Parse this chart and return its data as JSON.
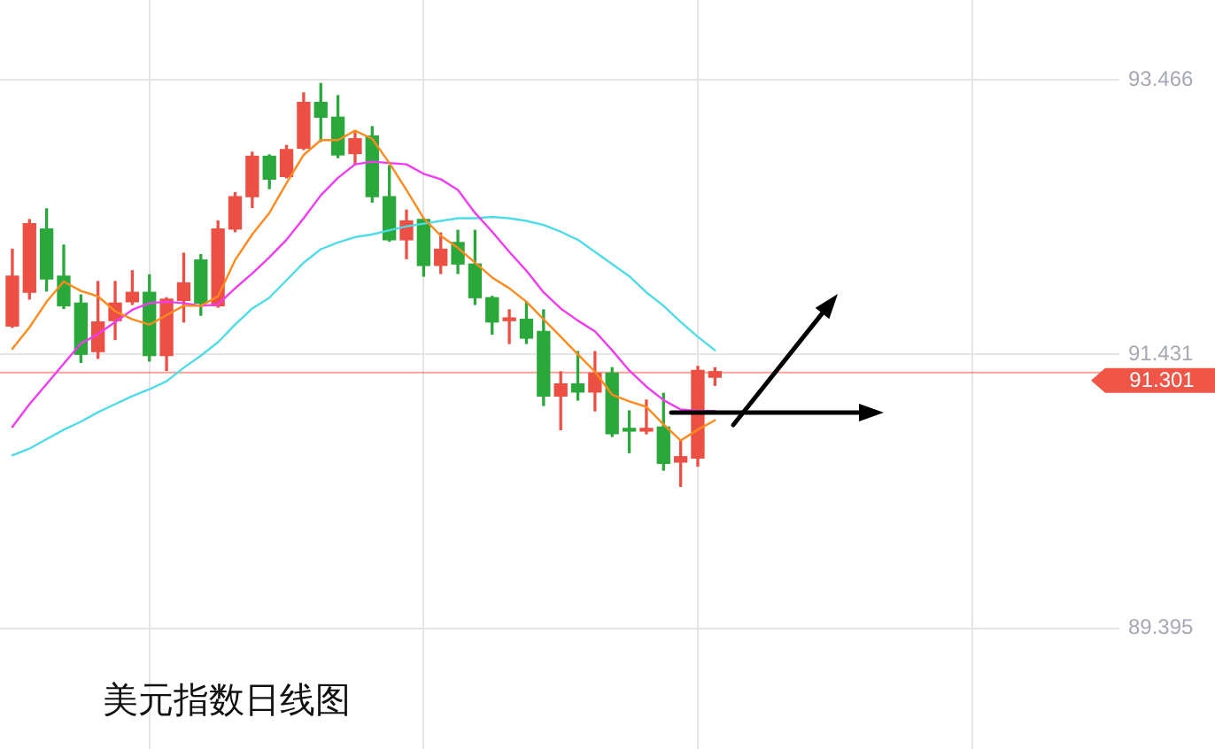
{
  "chart_data": {
    "type": "candlestick",
    "title": "美元指数日线图",
    "categories": [
      null,
      null,
      null,
      null,
      null,
      null,
      null,
      null,
      null,
      null,
      null,
      null,
      null,
      null,
      null,
      null,
      null,
      null,
      null,
      null,
      null,
      null,
      null,
      null,
      null,
      null,
      null,
      null,
      null,
      null,
      null,
      null,
      null,
      null,
      null,
      null,
      null,
      null,
      null,
      null,
      null,
      null
    ],
    "ohlc": [
      [
        91.64,
        92.21,
        91.63,
        92.01
      ],
      [
        91.89,
        92.43,
        91.84,
        92.4
      ],
      [
        92.36,
        92.51,
        91.9,
        91.99
      ],
      [
        92.01,
        92.24,
        91.77,
        91.79
      ],
      [
        91.81,
        91.87,
        91.37,
        91.43
      ],
      [
        91.45,
        91.97,
        91.4,
        91.67
      ],
      [
        91.68,
        91.97,
        91.54,
        91.81
      ],
      [
        91.82,
        92.05,
        91.8,
        91.89
      ],
      [
        91.89,
        92.02,
        91.38,
        91.42
      ],
      [
        91.42,
        91.85,
        91.31,
        91.84
      ],
      [
        91.83,
        92.18,
        91.67,
        91.96
      ],
      [
        92.13,
        92.17,
        91.72,
        91.81
      ],
      [
        91.79,
        92.42,
        91.78,
        92.36
      ],
      [
        92.36,
        92.63,
        92.34,
        92.6
      ],
      [
        92.6,
        92.93,
        92.52,
        92.9
      ],
      [
        92.9,
        92.91,
        92.66,
        92.73
      ],
      [
        92.75,
        92.98,
        92.74,
        92.95
      ],
      [
        92.96,
        93.37,
        92.95,
        93.3
      ],
      [
        93.3,
        93.44,
        93.01,
        93.19
      ],
      [
        93.19,
        93.35,
        92.89,
        92.91
      ],
      [
        92.92,
        93.09,
        92.84,
        93.03
      ],
      [
        93.05,
        93.12,
        92.56,
        92.6
      ],
      [
        92.6,
        92.83,
        92.27,
        92.28
      ],
      [
        92.28,
        92.5,
        92.14,
        92.42
      ],
      [
        92.43,
        92.44,
        92.01,
        92.09
      ],
      [
        92.09,
        92.33,
        92.03,
        92.21
      ],
      [
        92.26,
        92.35,
        92.03,
        92.1
      ],
      [
        92.1,
        92.35,
        91.8,
        91.85
      ],
      [
        91.85,
        91.86,
        91.58,
        91.67
      ],
      [
        91.68,
        91.76,
        91.51,
        91.7
      ],
      [
        91.69,
        91.82,
        91.51,
        91.55
      ],
      [
        91.6,
        91.76,
        91.05,
        91.12
      ],
      [
        91.12,
        91.3,
        90.87,
        91.21
      ],
      [
        91.21,
        91.45,
        91.09,
        91.15
      ],
      [
        91.15,
        91.45,
        91.01,
        91.29
      ],
      [
        91.29,
        91.33,
        90.82,
        90.84
      ],
      [
        90.88,
        91.01,
        90.7,
        90.86
      ],
      [
        90.86,
        91.09,
        90.84,
        90.88
      ],
      [
        90.89,
        91.14,
        90.57,
        90.62
      ],
      [
        90.63,
        90.79,
        90.45,
        90.67
      ],
      [
        90.66,
        91.34,
        90.6,
        91.31
      ],
      [
        91.26,
        91.33,
        91.2,
        91.301
      ]
    ],
    "colors": [
      "#ec4f43",
      "#ec4f43",
      "#2ba83b",
      "#2ba83b",
      "#2ba83b",
      "#ec4f43",
      "#ec4f43",
      "#ec4f43",
      "#2ba83b",
      "#ec4f43",
      "#ec4f43",
      "#2ba83b",
      "#ec4f43",
      "#ec4f43",
      "#ec4f43",
      "#2ba83b",
      "#ec4f43",
      "#ec4f43",
      "#2ba83b",
      "#2ba83b",
      "#ec4f43",
      "#2ba83b",
      "#2ba83b",
      "#ec4f43",
      "#2ba83b",
      "#ec4f43",
      "#2ba83b",
      "#2ba83b",
      "#2ba83b",
      "#ec4f43",
      "#2ba83b",
      "#2ba83b",
      "#ec4f43",
      "#2ba83b",
      "#ec4f43",
      "#2ba83b",
      "#2ba83b",
      "#ec4f43",
      "#2ba83b",
      "#ec4f43",
      "#ec4f43",
      "#ec4f43"
    ],
    "series": [
      {
        "type": "line",
        "color": "#ff8a1f",
        "values": [
          91.47,
          91.63,
          91.82,
          91.97,
          91.9,
          91.86,
          91.75,
          91.69,
          91.65,
          91.72,
          91.79,
          91.79,
          91.86,
          92.13,
          92.32,
          92.48,
          92.7,
          92.91,
          93.02,
          93.02,
          93.09,
          93.03,
          92.85,
          92.65,
          92.44,
          92.31,
          92.22,
          92.11,
          92.0,
          91.92,
          91.82,
          91.69,
          91.56,
          91.43,
          91.3,
          91.13,
          91.08,
          91.04,
          90.91,
          90.79,
          90.87,
          90.94
        ]
      },
      {
        "type": "line",
        "color": "#f03cf0",
        "values": [
          90.89,
          91.06,
          91.21,
          91.36,
          91.51,
          91.58,
          91.67,
          91.76,
          91.81,
          91.82,
          91.81,
          91.79,
          91.8,
          91.92,
          92.03,
          92.15,
          92.28,
          92.44,
          92.61,
          92.74,
          92.84,
          92.86,
          92.85,
          92.84,
          92.77,
          92.73,
          92.65,
          92.48,
          92.34,
          92.19,
          92.05,
          91.89,
          91.77,
          91.68,
          91.6,
          91.46,
          91.31,
          91.19,
          91.09,
          91.02,
          91.01,
          91.01
        ]
      },
      {
        "type": "line",
        "color": "#4fdbe8",
        "values": [
          90.68,
          90.73,
          90.8,
          90.87,
          90.93,
          91.0,
          91.06,
          91.12,
          91.17,
          91.23,
          91.33,
          91.42,
          91.52,
          91.65,
          91.77,
          91.85,
          91.98,
          92.11,
          92.21,
          92.26,
          92.3,
          92.32,
          92.35,
          92.38,
          92.4,
          92.42,
          92.44,
          92.44,
          92.45,
          92.44,
          92.42,
          92.39,
          92.34,
          92.28,
          92.19,
          92.1,
          92.01,
          91.89,
          91.79,
          91.67,
          91.56,
          91.46
        ]
      }
    ],
    "ylim": [
      88.5,
      94.06
    ],
    "yticks": [
      89.395,
      91.431,
      93.466
    ],
    "ref_lines": [
      {
        "axis": "y",
        "value": 91.301,
        "label": "91.301",
        "color": "#ef5647"
      }
    ],
    "grid": true,
    "legend": false,
    "marker": "none",
    "tick_labels": "y"
  }
}
